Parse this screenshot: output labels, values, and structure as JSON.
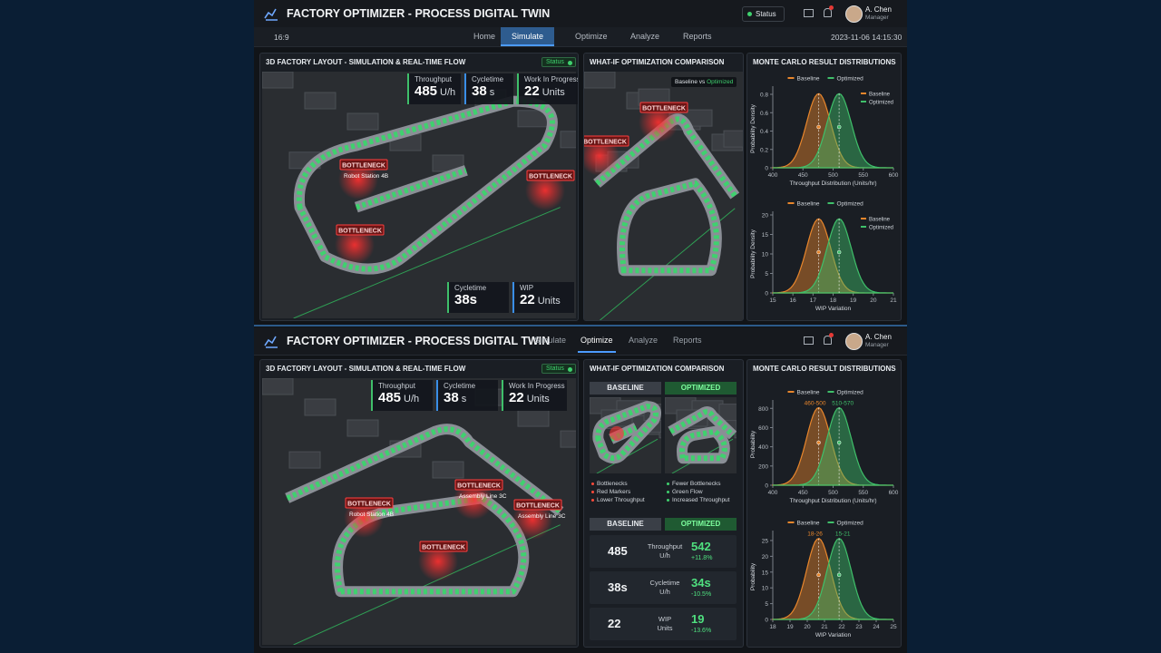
{
  "top": {
    "header": {
      "title": "FACTORY OPTIMIZER - PROCESS DIGITAL TWIN",
      "status": "Status",
      "user": "A. Chen",
      "role": "Manager"
    },
    "toolbar": {
      "aspect": "16:9",
      "tabs": [
        "Home",
        "Simulate",
        "Optimize",
        "Analyze",
        "Reports"
      ],
      "active_tab": 1,
      "datetime": "2023-11-06 14:15:30"
    },
    "layout": {
      "title": "3D FACTORY LAYOUT - SIMULATION & REAL-TIME FLOW",
      "status": "Status",
      "kpis": [
        {
          "label": "Throughput",
          "value": "485",
          "unit": "U/h"
        },
        {
          "label": "Cycletime",
          "value": "38",
          "unit": "s"
        },
        {
          "label": "Work In Progress",
          "value": "22",
          "unit": "Units"
        }
      ],
      "bottom_kpis": [
        {
          "label": "Cycletime",
          "value": "38s"
        },
        {
          "label": "WIP",
          "value": "22",
          "unit": "Units"
        }
      ],
      "bottlenecks": [
        {
          "label": "BOTTLENECK",
          "caption": "Robot Station 4B"
        },
        {
          "label": "BOTTLENECK"
        },
        {
          "label": "BOTTLENECK"
        }
      ]
    },
    "whatif": {
      "title": "WHAT-IF OPTIMIZATION COMPARISON",
      "legend": {
        "baseline": "Baseline",
        "vs": "vs",
        "optimized": "Optimized"
      },
      "bottlenecks": [
        {
          "label": "BOTTLENECK"
        },
        {
          "label": "BOTTLENECK"
        }
      ]
    },
    "monte": {
      "title": "MONTE CARLO RESULT DISTRIBUTIONS",
      "charts": [
        {
          "type": "density",
          "series": [
            {
              "name": "Baseline",
              "color": "#e8862c"
            },
            {
              "name": "Optimized",
              "color": "#3fbf6a"
            }
          ],
          "ylabel": "Probability Density",
          "xlabel": "Throughput Distribution (Units/hr)",
          "xlim": [
            400,
            600
          ],
          "xticks": [
            400,
            450,
            500,
            550,
            600
          ],
          "ylim": [
            0,
            0.85
          ],
          "yticks": [
            0,
            0.2,
            0.4,
            0.6,
            0.8
          ],
          "inner_legend": true
        },
        {
          "type": "density",
          "series": [
            {
              "name": "Baseline",
              "color": "#e8862c"
            },
            {
              "name": "Optimized",
              "color": "#3fbf6a"
            }
          ],
          "ylabel": "Probability Density",
          "xlabel": "WIP Variation",
          "xlim": [
            15,
            21
          ],
          "xticks": [
            15,
            16,
            17,
            18,
            19,
            20,
            21
          ],
          "ylim": [
            0,
            20
          ],
          "yticks": [
            0,
            5,
            10,
            15,
            20
          ],
          "inner_legend": true
        }
      ]
    }
  },
  "bottom": {
    "header": {
      "title": "FACTORY OPTIMIZER - PROCESS DIGITAL TWIN",
      "tabs": [
        "Simulate",
        "Optimize",
        "Analyze",
        "Reports"
      ],
      "active_tab": 1,
      "user": "A. Chen",
      "role": "Manager"
    },
    "layout": {
      "title": "3D FACTORY LAYOUT - SIMULATION & REAL-TIME FLOW",
      "status": "Status",
      "kpis": [
        {
          "label": "Throughput",
          "value": "485",
          "unit": "U/h"
        },
        {
          "label": "Cycletime",
          "value": "38",
          "unit": "s"
        },
        {
          "label": "Work In Progress",
          "value": "22",
          "unit": "Units"
        }
      ],
      "bottlenecks": [
        {
          "label": "BOTTLENECK",
          "caption": "Robot Station 4B"
        },
        {
          "label": "BOTTLENECK"
        },
        {
          "label": "BOTTLENECK",
          "caption": "Assembly Line 3C"
        },
        {
          "label": "BOTTLENECK",
          "caption": "Assembly Line 3C"
        }
      ]
    },
    "whatif": {
      "title": "WHAT-IF OPTIMIZATION COMPARISON",
      "baseline": "BASELINE",
      "optimized": "OPTIMIZED",
      "baseline_notes": [
        "Bottlenecks",
        "Red Markers",
        "Lower Throughput"
      ],
      "optimized_notes": [
        "Fewer Bottlenecks",
        "Green Flow",
        "Increased Throughput"
      ],
      "metrics": [
        {
          "baseline": "485",
          "metric": "Throughput",
          "unit": "U/h",
          "optimized": "542",
          "change": "+11.8%"
        },
        {
          "baseline": "38s",
          "metric": "Cycletime",
          "unit": "U/h",
          "optimized": "34s",
          "change": "-10.5%"
        },
        {
          "baseline": "22",
          "metric": "WIP",
          "unit": "Units",
          "optimized": "19",
          "change": "-13.6%"
        }
      ]
    },
    "monte": {
      "title": "MONTE CARLO RESULT DISTRIBUTIONS",
      "charts": [
        {
          "type": "density",
          "series": [
            {
              "name": "Baseline",
              "color": "#e8862c"
            },
            {
              "name": "Optimized",
              "color": "#3fbf6a"
            }
          ],
          "ylabel": "Probability",
          "xlabel": "Throughput Distribution (Units/hr)",
          "xlim": [
            400,
            600
          ],
          "xticks": [
            400,
            450,
            500,
            550,
            600
          ],
          "ylim": [
            0,
            850
          ],
          "yticks": [
            0,
            200,
            400,
            600,
            800
          ],
          "annotations": [
            "460-500",
            "510-570"
          ]
        },
        {
          "type": "density",
          "series": [
            {
              "name": "Baseline",
              "color": "#e8862c"
            },
            {
              "name": "Optimized",
              "color": "#3fbf6a"
            }
          ],
          "ylabel": "Probability",
          "xlabel": "WIP Variation",
          "xlim": [
            18,
            25
          ],
          "xticks": [
            18,
            19,
            20,
            21,
            22,
            23,
            24,
            25
          ],
          "ylim": [
            0,
            27
          ],
          "yticks": [
            0,
            5,
            10,
            15,
            20,
            25
          ],
          "annotations": [
            "18-26",
            "15-21"
          ]
        }
      ]
    }
  }
}
